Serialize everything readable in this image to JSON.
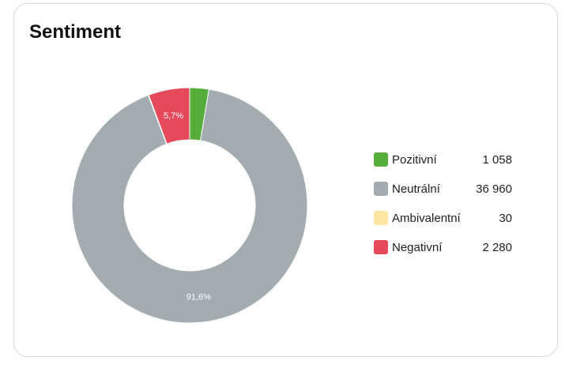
{
  "card": {
    "title": "Sentiment"
  },
  "colors": {
    "card_border": "#d9d9d9"
  },
  "chart_data": {
    "type": "pie",
    "variant": "donut",
    "title": "Sentiment",
    "legend_position": "right",
    "slices": [
      {
        "name": "Pozitivní",
        "value": 1058,
        "display": "1 058",
        "color": "#55ae3a",
        "label": ""
      },
      {
        "name": "Neutrální",
        "value": 36960,
        "display": "36 960",
        "color": "#a3acb1",
        "label": "91,6%"
      },
      {
        "name": "Ambivalentní",
        "value": 30,
        "display": "30",
        "color": "#fde6a0",
        "label": ""
      },
      {
        "name": "Negativní",
        "value": 2280,
        "display": "2 280",
        "color": "#e6495a",
        "label": "5,7%"
      }
    ]
  }
}
